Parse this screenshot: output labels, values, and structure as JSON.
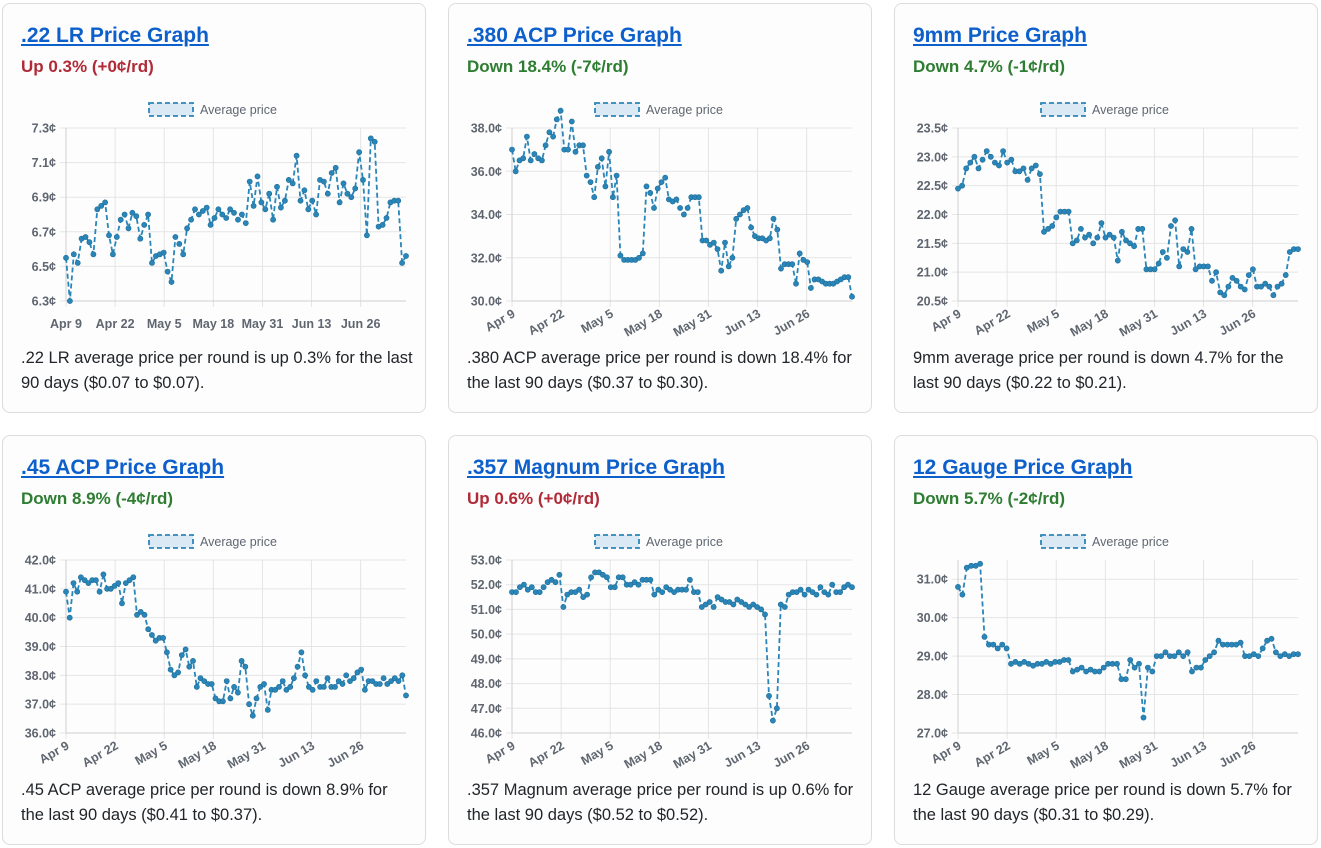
{
  "colors": {
    "line": "#2a86b8",
    "grid": "#e5e5e5",
    "up": "#b02a37",
    "down": "#2e7d32",
    "link": "#0d5fcc"
  },
  "cards": [
    {
      "title": ".22 LR Price Graph",
      "trend": "up",
      "change": "Up 0.3% (+0¢/rd)",
      "description": ".22 LR average price per round is up 0.3% for the last 90 days ($0.07 to $0.07)."
    },
    {
      "title": ".380 ACP Price Graph",
      "trend": "down",
      "change": "Down 18.4% (-7¢/rd)",
      "description": ".380 ACP average price per round is down 18.4% for the last 90 days ($0.37 to $0.30)."
    },
    {
      "title": "9mm Price Graph",
      "trend": "down",
      "change": "Down 4.7% (-1¢/rd)",
      "description": "9mm average price per round is down 4.7% for the last 90 days ($0.22 to $0.21)."
    },
    {
      "title": ".45 ACP Price Graph",
      "trend": "down",
      "change": "Down 8.9% (-4¢/rd)",
      "description": ".45 ACP average price per round is down 8.9% for the last 90 days ($0.41 to $0.37)."
    },
    {
      "title": ".357 Magnum Price Graph",
      "trend": "up",
      "change": "Up 0.6% (+0¢/rd)",
      "description": ".357 Magnum average price per round is up 0.6% for the last 90 days ($0.52 to $0.52)."
    },
    {
      "title": "12 Gauge Price Graph",
      "trend": "down",
      "change": "Down 5.7% (-2¢/rd)",
      "description": "12 Gauge average price per round is down 5.7% for the last 90 days ($0.31 to $0.29)."
    }
  ],
  "chart_data": [
    {
      "type": "line",
      "legend": "Average price",
      "legend_position": "top-center",
      "grid": true,
      "ylim": [
        6.3,
        7.3
      ],
      "yticks": [
        "7.3¢",
        "7.1¢",
        "6.9¢",
        "6.7¢",
        "6.5¢",
        "6.3¢"
      ],
      "xticks": [
        "Apr 9",
        "Apr 22",
        "May 5",
        "May 18",
        "May 31",
        "Jun 13",
        "Jun 26"
      ],
      "xtick_rotation": 0,
      "values": [
        6.55,
        6.3,
        6.57,
        6.52,
        6.66,
        6.67,
        6.64,
        6.57,
        6.83,
        6.85,
        6.87,
        6.68,
        6.57,
        6.67,
        6.77,
        6.8,
        6.72,
        6.81,
        6.79,
        6.66,
        6.74,
        6.8,
        6.52,
        6.56,
        6.57,
        6.58,
        6.47,
        6.41,
        6.67,
        6.63,
        6.57,
        6.72,
        6.77,
        6.83,
        6.8,
        6.82,
        6.84,
        6.74,
        6.78,
        6.83,
        6.8,
        6.78,
        6.83,
        6.81,
        6.77,
        6.8,
        6.75,
        6.99,
        6.85,
        7.02,
        6.87,
        6.83,
        6.92,
        6.77,
        6.96,
        6.84,
        6.88,
        7.0,
        6.98,
        7.14,
        6.88,
        6.94,
        6.83,
        6.88,
        6.8,
        7.0,
        6.99,
        6.92,
        7.04,
        7.07,
        6.87,
        6.98,
        6.92,
        6.9,
        6.95,
        7.16,
        7.0,
        6.68,
        7.24,
        7.22,
        6.73,
        6.74,
        6.78,
        6.87,
        6.88,
        6.88,
        6.52,
        6.56
      ]
    },
    {
      "type": "line",
      "legend": "Average price",
      "legend_position": "top-center",
      "grid": true,
      "ylim": [
        30.0,
        38.0
      ],
      "yticks": [
        "38.0¢",
        "36.0¢",
        "34.0¢",
        "32.0¢",
        "30.0¢"
      ],
      "xticks": [
        "Apr 9",
        "Apr 22",
        "May 5",
        "May 18",
        "May 31",
        "Jun 13",
        "Jun 26"
      ],
      "xtick_rotation": -30,
      "values": [
        37.0,
        36.0,
        36.5,
        36.6,
        37.6,
        36.5,
        36.8,
        36.6,
        36.5,
        37.2,
        37.8,
        37.6,
        38.4,
        38.8,
        37.0,
        37.0,
        38.3,
        36.9,
        37.2,
        37.2,
        35.8,
        35.5,
        34.8,
        36.2,
        36.6,
        35.3,
        36.9,
        34.8,
        35.8,
        32.1,
        31.9,
        31.9,
        31.9,
        31.9,
        32.0,
        32.2,
        35.3,
        35.0,
        34.3,
        35.2,
        35.5,
        35.7,
        34.7,
        34.6,
        34.7,
        34.3,
        34.0,
        34.3,
        34.8,
        34.8,
        34.8,
        32.8,
        32.8,
        32.6,
        32.7,
        32.4,
        31.4,
        32.7,
        31.6,
        32.0,
        33.8,
        34.0,
        34.2,
        34.3,
        33.4,
        33.0,
        32.9,
        32.9,
        32.8,
        32.9,
        33.8,
        33.3,
        31.5,
        31.7,
        31.7,
        31.7,
        30.8,
        32.2,
        31.9,
        31.8,
        30.6,
        31.0,
        31.0,
        30.9,
        30.8,
        30.8,
        30.8,
        30.9,
        31.0,
        31.1,
        31.1,
        30.2
      ]
    },
    {
      "type": "line",
      "legend": "Average price",
      "legend_position": "top-center",
      "grid": true,
      "ylim": [
        20.5,
        23.5
      ],
      "yticks": [
        "23.5¢",
        "23.0¢",
        "22.5¢",
        "22.0¢",
        "21.5¢",
        "21.0¢",
        "20.5¢"
      ],
      "xticks": [
        "Apr 9",
        "Apr 22",
        "May 5",
        "May 18",
        "May 31",
        "Jun 13",
        "Jun 26"
      ],
      "xtick_rotation": -30,
      "values": [
        22.45,
        22.5,
        22.8,
        22.9,
        23.0,
        22.8,
        22.95,
        23.1,
        23.0,
        22.9,
        22.85,
        23.1,
        22.9,
        22.95,
        22.75,
        22.75,
        22.8,
        22.6,
        22.8,
        22.85,
        22.7,
        21.7,
        21.75,
        21.8,
        21.95,
        22.05,
        22.05,
        22.05,
        21.5,
        21.55,
        21.75,
        21.6,
        21.65,
        21.5,
        21.6,
        21.85,
        21.6,
        21.65,
        21.6,
        21.2,
        21.7,
        21.55,
        21.5,
        21.45,
        21.75,
        21.75,
        21.05,
        21.05,
        21.05,
        21.15,
        21.35,
        21.25,
        21.8,
        21.9,
        21.1,
        21.4,
        21.35,
        21.75,
        21.05,
        21.1,
        21.1,
        21.1,
        20.85,
        21.0,
        20.65,
        20.6,
        20.75,
        20.9,
        20.85,
        20.75,
        20.7,
        20.95,
        21.05,
        20.75,
        20.75,
        20.8,
        20.75,
        20.6,
        20.75,
        20.8,
        20.95,
        21.35,
        21.4,
        21.4
      ]
    },
    {
      "type": "line",
      "legend": "Average price",
      "legend_position": "top-center",
      "grid": true,
      "ylim": [
        36.0,
        42.0
      ],
      "yticks": [
        "42.0¢",
        "41.0¢",
        "40.0¢",
        "39.0¢",
        "38.0¢",
        "37.0¢",
        "36.0¢"
      ],
      "xticks": [
        "Apr 9",
        "Apr 22",
        "May 5",
        "May 18",
        "May 31",
        "Jun 13",
        "Jun 26"
      ],
      "xtick_rotation": -30,
      "values": [
        40.9,
        40.0,
        41.2,
        40.9,
        41.4,
        41.3,
        41.2,
        41.3,
        41.3,
        40.9,
        41.5,
        41.0,
        41.0,
        41.1,
        41.2,
        40.5,
        41.2,
        41.3,
        41.4,
        40.1,
        40.2,
        40.1,
        39.6,
        39.4,
        39.2,
        39.3,
        39.3,
        38.8,
        38.2,
        38.0,
        38.1,
        38.7,
        38.9,
        38.3,
        38.5,
        37.6,
        37.9,
        37.8,
        37.7,
        37.7,
        37.2,
        37.1,
        37.1,
        37.8,
        37.2,
        37.6,
        37.4,
        38.5,
        38.3,
        37.0,
        36.6,
        37.2,
        37.6,
        37.7,
        36.8,
        37.5,
        37.5,
        37.6,
        37.8,
        37.5,
        37.6,
        37.9,
        38.3,
        38.8,
        38.0,
        37.6,
        37.5,
        37.8,
        37.6,
        37.6,
        37.9,
        37.6,
        37.6,
        37.8,
        37.7,
        38.0,
        37.8,
        37.9,
        38.1,
        38.2,
        37.5,
        37.8,
        37.8,
        37.7,
        37.7,
        37.9,
        37.7,
        37.8,
        37.9,
        37.8,
        38.0,
        37.3
      ]
    },
    {
      "type": "line",
      "legend": "Average price",
      "legend_position": "top-center",
      "grid": true,
      "ylim": [
        46.0,
        53.0
      ],
      "yticks": [
        "53.0¢",
        "52.0¢",
        "51.0¢",
        "50.0¢",
        "49.0¢",
        "48.0¢",
        "47.0¢",
        "46.0¢"
      ],
      "xticks": [
        "Apr 9",
        "Apr 22",
        "May 5",
        "May 18",
        "May 31",
        "Jun 13",
        "Jun 26"
      ],
      "xtick_rotation": -30,
      "values": [
        51.7,
        51.7,
        51.9,
        52.0,
        51.8,
        51.9,
        51.7,
        51.7,
        51.9,
        52.1,
        52.2,
        52.1,
        52.4,
        51.1,
        51.6,
        51.7,
        51.7,
        51.8,
        51.5,
        51.6,
        52.3,
        52.5,
        52.5,
        52.4,
        52.3,
        51.9,
        51.9,
        52.3,
        52.3,
        52.0,
        52.0,
        52.1,
        52.0,
        52.2,
        52.2,
        52.2,
        51.6,
        51.8,
        51.7,
        51.9,
        51.8,
        51.7,
        51.8,
        51.8,
        51.8,
        52.2,
        51.7,
        51.7,
        51.1,
        51.2,
        51.3,
        51.1,
        51.5,
        51.4,
        51.3,
        51.3,
        51.2,
        51.4,
        51.3,
        51.2,
        51.1,
        51.2,
        51.1,
        51.0,
        50.8,
        47.5,
        46.5,
        47.0,
        51.2,
        51.1,
        51.6,
        51.7,
        51.7,
        51.8,
        51.6,
        51.8,
        51.7,
        51.6,
        51.9,
        51.7,
        51.6,
        52.0,
        51.7,
        51.7,
        51.9,
        52.0,
        51.9
      ]
    },
    {
      "type": "line",
      "legend": "Average price",
      "legend_position": "top-center",
      "grid": true,
      "ylim": [
        27.0,
        31.5
      ],
      "yticks": [
        "31.0¢",
        "30.0¢",
        "29.0¢",
        "28.0¢",
        "27.0¢"
      ],
      "xticks": [
        "Apr 9",
        "Apr 22",
        "May 5",
        "May 18",
        "May 31",
        "Jun 13",
        "Jun 26"
      ],
      "xtick_rotation": -30,
      "values": [
        30.8,
        30.6,
        31.3,
        31.35,
        31.35,
        31.4,
        29.5,
        29.3,
        29.3,
        29.2,
        29.3,
        29.2,
        28.8,
        28.85,
        28.8,
        28.85,
        28.8,
        28.75,
        28.8,
        28.8,
        28.85,
        28.8,
        28.85,
        28.85,
        28.9,
        28.9,
        28.6,
        28.65,
        28.7,
        28.6,
        28.65,
        28.6,
        28.6,
        28.7,
        28.8,
        28.8,
        28.8,
        28.4,
        28.4,
        28.9,
        28.7,
        28.8,
        27.4,
        28.7,
        28.6,
        29.0,
        29.0,
        29.1,
        29.0,
        29.0,
        29.1,
        29.0,
        29.1,
        28.6,
        28.7,
        28.7,
        28.9,
        29.0,
        29.1,
        29.4,
        29.3,
        29.3,
        29.3,
        29.3,
        29.35,
        29.0,
        29.0,
        29.05,
        29.0,
        29.2,
        29.4,
        29.45,
        29.1,
        29.0,
        29.05,
        29.0,
        29.05,
        29.05
      ]
    }
  ]
}
